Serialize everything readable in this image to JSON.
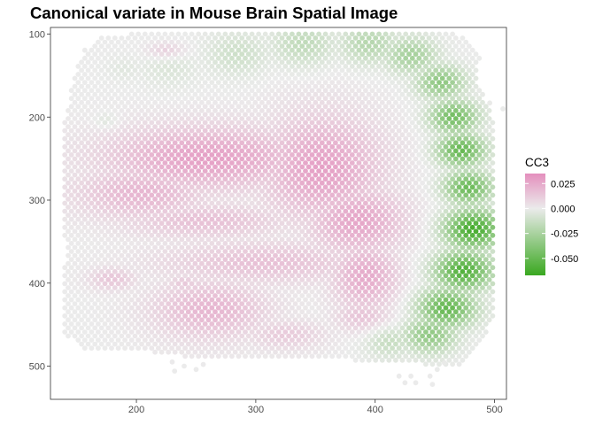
{
  "chart_data": {
    "type": "scatter",
    "title": "Canonical variate in Mouse Brain Spatial Image",
    "xlabel": "",
    "ylabel": "",
    "xlim": [
      128,
      510
    ],
    "ylim": [
      540,
      92
    ],
    "y_reversed": true,
    "x_ticks": [
      200,
      300,
      400,
      500
    ],
    "y_ticks": [
      100,
      200,
      300,
      400,
      500
    ],
    "grid": false,
    "legend": {
      "position": "right",
      "title": "CC3",
      "range": [
        -0.067,
        0.035
      ],
      "breaks": [
        0.025,
        0.0,
        -0.025,
        -0.05
      ],
      "break_labels": [
        "0.025",
        "0.000",
        "-0.025",
        "-0.050"
      ],
      "colors": {
        "low": "#3aa820",
        "mid": "#ebebeb",
        "high": "#e48fbd"
      }
    },
    "spot_grid": {
      "x_start": 140,
      "x_end": 500,
      "x_step": 5.6,
      "y_start": 100,
      "y_end": 525,
      "y_step": 9.7,
      "hex_offset": true
    },
    "tissue_polygon": [
      [
        168,
        102
      ],
      [
        262,
        94
      ],
      [
        372,
        92
      ],
      [
        465,
        94
      ],
      [
        488,
        124
      ],
      [
        486,
        156
      ],
      [
        492,
        178
      ],
      [
        505,
        218
      ],
      [
        510,
        268
      ],
      [
        505,
        332
      ],
      [
        508,
        392
      ],
      [
        500,
        442
      ],
      [
        486,
        478
      ],
      [
        470,
        500
      ],
      [
        418,
        496
      ],
      [
        352,
        490
      ],
      [
        300,
        488
      ],
      [
        258,
        492
      ],
      [
        208,
        482
      ],
      [
        160,
        482
      ],
      [
        136,
        458
      ],
      [
        137,
        410
      ],
      [
        142,
        362
      ],
      [
        136,
        310
      ],
      [
        138,
        260
      ],
      [
        140,
        200
      ],
      [
        148,
        150
      ],
      [
        156,
        120
      ]
    ],
    "extra_spots": [
      [
        496,
        183
      ],
      [
        507,
        190
      ],
      [
        420,
        512
      ],
      [
        425,
        520
      ],
      [
        430,
        512
      ],
      [
        434,
        520
      ],
      [
        446,
        512
      ],
      [
        448,
        522
      ],
      [
        452,
        504
      ],
      [
        458,
        496
      ],
      [
        230,
        495
      ],
      [
        240,
        500
      ],
      [
        250,
        504
      ],
      [
        256,
        498
      ],
      [
        232,
        506
      ]
    ],
    "cortex_band_green": [
      [
        228,
        140,
        24,
        -0.006
      ],
      [
        285,
        124,
        26,
        -0.011
      ],
      [
        340,
        112,
        26,
        -0.016
      ],
      [
        395,
        112,
        24,
        -0.02
      ],
      [
        430,
        126,
        22,
        -0.026
      ],
      [
        455,
        158,
        20,
        -0.035
      ],
      [
        466,
        200,
        20,
        -0.045
      ],
      [
        472,
        240,
        20,
        -0.05
      ],
      [
        478,
        285,
        20,
        -0.048
      ],
      [
        482,
        335,
        24,
        -0.062
      ],
      [
        474,
        385,
        24,
        -0.058
      ],
      [
        460,
        430,
        24,
        -0.05
      ],
      [
        446,
        462,
        22,
        -0.034
      ],
      [
        412,
        470,
        20,
        -0.014
      ],
      [
        190,
        142,
        14,
        -0.004
      ],
      [
        175,
        205,
        10,
        -0.006
      ]
    ],
    "pink_regions": [
      [
        260,
        250,
        85,
        38,
        0.028
      ],
      [
        355,
        262,
        50,
        62,
        0.028
      ],
      [
        205,
        292,
        55,
        33,
        0.02
      ],
      [
        385,
        325,
        40,
        42,
        0.026
      ],
      [
        258,
        325,
        70,
        22,
        0.016
      ],
      [
        308,
        375,
        88,
        26,
        0.016
      ],
      [
        392,
        392,
        28,
        42,
        0.024
      ],
      [
        262,
        432,
        48,
        36,
        0.02
      ],
      [
        325,
        462,
        34,
        18,
        0.012
      ],
      [
        390,
        440,
        24,
        20,
        0.015
      ],
      [
        180,
        395,
        20,
        14,
        0.014
      ],
      [
        240,
        400,
        14,
        10,
        0.013
      ],
      [
        225,
        120,
        16,
        10,
        0.012
      ]
    ]
  }
}
